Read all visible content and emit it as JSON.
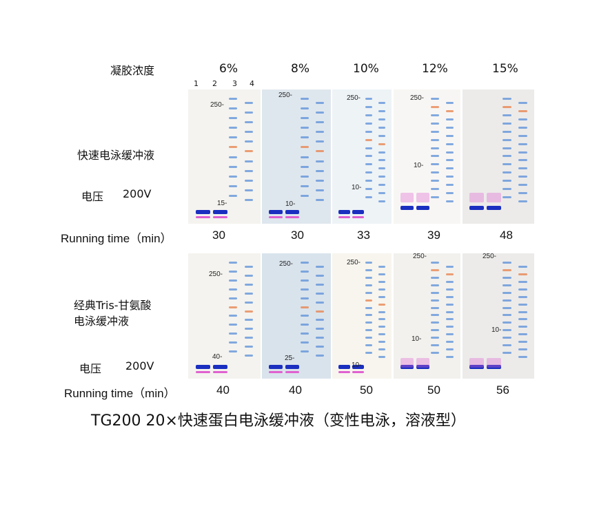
{
  "header": {
    "gel_concentration_label": "凝胶浓度",
    "concentrations": [
      "6%",
      "8%",
      "10%",
      "12%",
      "15%"
    ],
    "lanes": [
      "1",
      "2",
      "3",
      "4"
    ]
  },
  "top": {
    "buffer_label": "快速电泳缓冲液",
    "voltage_label": "电压",
    "voltage_value": "200V",
    "running_time_label": "Running time（min）",
    "running_times": [
      "30",
      "30",
      "33",
      "39",
      "48"
    ],
    "markers": [
      [
        "250-",
        "15-"
      ],
      [
        "250-",
        "10-"
      ],
      [
        "250-",
        "10-"
      ],
      [
        "250-",
        "10-"
      ],
      []
    ]
  },
  "bottom": {
    "buffer_label_line1": "经典Tris-甘氨酸",
    "buffer_label_line2": "电泳缓冲液",
    "voltage_label": "电压",
    "voltage_value": "200V",
    "running_time_label": "Running time（min）",
    "running_times": [
      "40",
      "40",
      "50",
      "50",
      "56"
    ],
    "markers": [
      [
        "250-",
        "40-"
      ],
      [
        "250-",
        "25-"
      ],
      [
        "250-",
        "10-"
      ],
      [
        "250-",
        "10-"
      ],
      [
        "250-",
        "10-"
      ]
    ]
  },
  "caption": "TG200  20×快速蛋白电泳缓冲液（变性电泳，溶液型）",
  "colors": {
    "marker_blue": "#5b8fd8",
    "marker_orange": "#e8804a",
    "dye_blue": "#1a2fc0",
    "dye_pink": "#e060d0"
  }
}
